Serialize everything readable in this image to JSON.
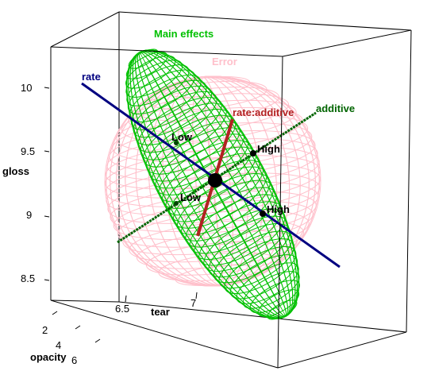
{
  "chart_data": {
    "type": "heplot3d",
    "axes": {
      "x": {
        "label": "tear",
        "ticks": [
          "6.5",
          "7"
        ]
      },
      "y": {
        "label": "gloss",
        "ticks": [
          "10",
          "9.5",
          "9",
          "8.5"
        ]
      },
      "z": {
        "label": "opacity",
        "ticks": [
          "2",
          "4",
          "6"
        ]
      }
    },
    "ellipsoids": [
      {
        "name": "Main effects",
        "color": "#00c000"
      },
      {
        "name": "Error",
        "color": "#ffc0cb"
      }
    ],
    "terms": [
      {
        "name": "rate",
        "color": "#000080",
        "levels": [
          "Low",
          "High"
        ]
      },
      {
        "name": "additive",
        "color": "#006400",
        "levels": [
          "Low",
          "High"
        ]
      },
      {
        "name": "rate:additive",
        "color": "#b22222",
        "levels": []
      }
    ],
    "grid": false,
    "box": true
  }
}
